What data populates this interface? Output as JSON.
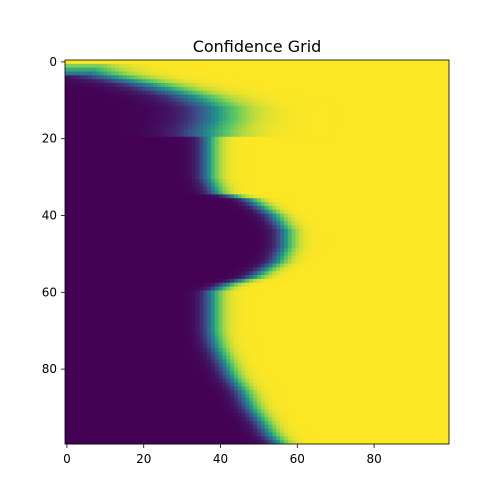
{
  "chart_data": {
    "type": "heatmap",
    "title": "Confidence Grid",
    "colormap": "viridis",
    "colormap_stops": [
      "#440154",
      "#3b528b",
      "#21918c",
      "#5ec962",
      "#fde725"
    ],
    "grid_size": [
      100,
      100
    ],
    "xlim": [
      -0.5,
      99.5
    ],
    "ylim": [
      99.5,
      -0.5
    ],
    "x_ticks": [
      "0",
      "20",
      "40",
      "60",
      "80"
    ],
    "y_ticks": [
      "0",
      "20",
      "40",
      "60",
      "80"
    ],
    "x_tick_values": [
      0,
      20,
      40,
      60,
      80
    ],
    "y_tick_values": [
      0,
      20,
      40,
      60,
      80
    ],
    "value_range": [
      0,
      1
    ],
    "boundary": {
      "description_values": "row index -> approximate column where value crosses 0.5 (low/purple on left, high/yellow on right)",
      "rows": [
        0,
        3,
        6,
        9,
        12,
        15,
        18,
        20,
        22,
        26,
        30,
        34,
        36,
        40,
        44,
        48,
        52,
        56,
        58,
        60,
        62,
        66,
        70,
        74,
        78,
        82,
        86,
        90,
        94,
        97,
        99
      ],
      "cols": [
        0,
        8,
        22,
        33,
        39,
        39,
        37,
        37,
        37,
        37,
        37,
        39,
        48,
        54,
        57,
        57,
        55,
        49,
        42,
        38,
        38,
        38,
        38,
        39,
        41,
        43,
        46,
        48,
        51,
        53,
        55
      ]
    }
  }
}
